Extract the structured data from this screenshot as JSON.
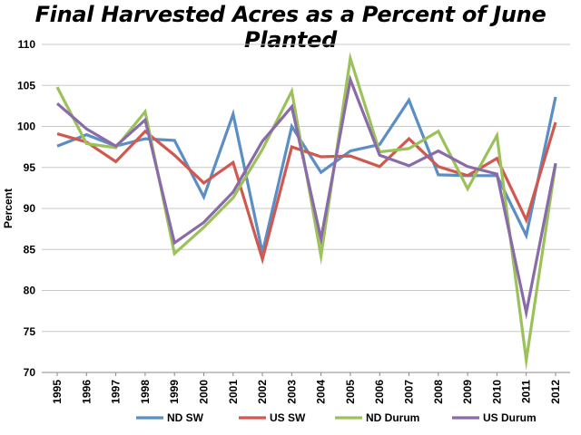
{
  "chart_data": {
    "type": "line",
    "title": "Final Harvested Acres as a Percent of June Planted",
    "ylabel": "Percent",
    "xlabel": "",
    "ylim": [
      70,
      110
    ],
    "yticks": [
      70,
      75,
      80,
      85,
      90,
      95,
      100,
      105,
      110
    ],
    "grid": "horizontal",
    "legend_position": "bottom",
    "categories": [
      "1995",
      "1996",
      "1997",
      "1998",
      "1999",
      "2000",
      "2001",
      "2002",
      "2003",
      "2004",
      "2005",
      "2006",
      "2007",
      "2008",
      "2009",
      "2010",
      "2011",
      "2012"
    ],
    "series": [
      {
        "name": "ND SW",
        "color": "#5b8ec4",
        "values": [
          97.6,
          99.0,
          97.6,
          98.5,
          98.3,
          91.4,
          101.5,
          84.6,
          100.0,
          94.4,
          97.0,
          97.8,
          103.2,
          94.1,
          94.0,
          94.0,
          86.7,
          103.6
        ]
      },
      {
        "name": "US SW",
        "color": "#d0584f",
        "values": [
          99.1,
          98.1,
          95.7,
          99.4,
          96.5,
          93.1,
          95.6,
          83.8,
          97.5,
          96.3,
          96.4,
          95.1,
          98.5,
          95.1,
          94.0,
          96.1,
          88.6,
          100.5
        ]
      },
      {
        "name": "ND Durum",
        "color": "#9bc25a",
        "values": [
          104.8,
          97.9,
          97.4,
          101.8,
          84.5,
          87.7,
          91.3,
          97.2,
          104.3,
          84.2,
          108.3,
          96.9,
          97.3,
          99.4,
          92.4,
          98.9,
          71.5,
          95.4
        ]
      },
      {
        "name": "US Durum",
        "color": "#8a6aa8",
        "values": [
          102.8,
          99.7,
          97.6,
          100.8,
          85.8,
          88.3,
          92.0,
          98.2,
          102.4,
          86.3,
          105.7,
          96.5,
          95.2,
          97.0,
          95.1,
          94.2,
          77.3,
          95.5
        ]
      }
    ]
  }
}
